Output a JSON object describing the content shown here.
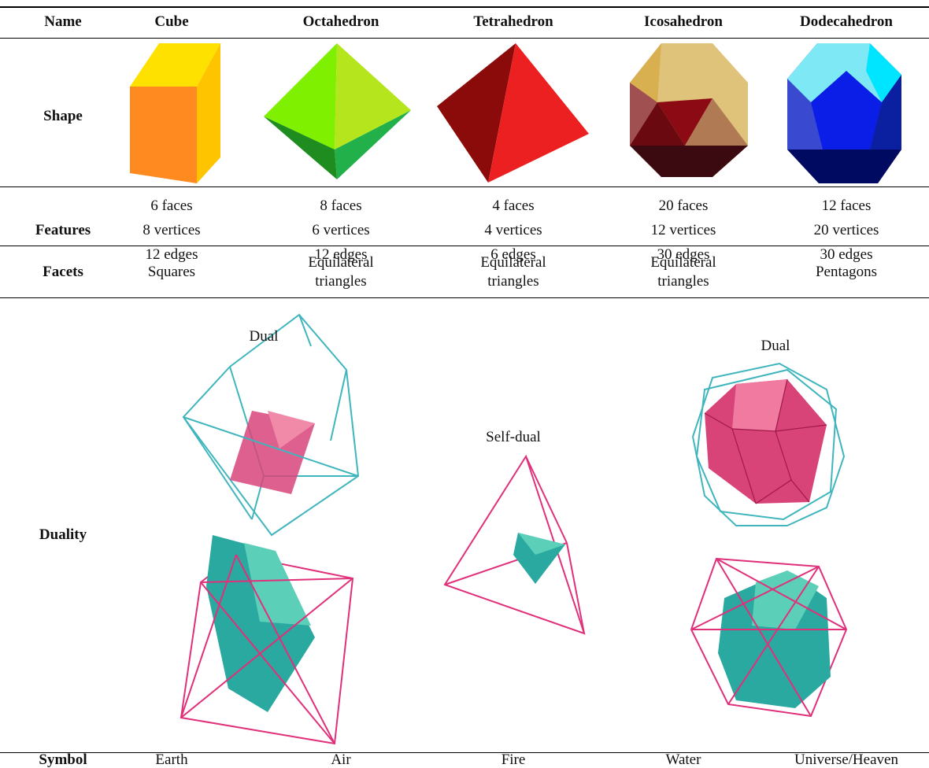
{
  "table": {
    "columns": [
      "Name",
      "Cube",
      "Octahedron",
      "Tetrahedron",
      "Icosahedron",
      "Dodecahedron"
    ],
    "rows": [
      {
        "label": "Shape"
      },
      {
        "label": "Features",
        "cells": [
          [
            "6 faces",
            "8 vertices",
            "12 edges"
          ],
          [
            "8 faces",
            "6 vertices",
            "12 edges"
          ],
          [
            "4 faces",
            "4 vertices",
            "6 edges"
          ],
          [
            "20 faces",
            "12 vertices",
            "30 edges"
          ],
          [
            "12 faces",
            "20 vertices",
            "30 edges"
          ]
        ]
      },
      {
        "label": "Facets",
        "cells": [
          "Squares",
          "Equilateral triangles",
          "Equilateral triangles",
          "Equilateral triangles",
          "Pentagons"
        ]
      },
      {
        "label": "Duality",
        "annotations": [
          "Dual",
          "Self-dual",
          "Dual"
        ]
      },
      {
        "label": "Symbol",
        "cells": [
          "Earth",
          "Air",
          "Fire",
          "Water",
          "Universe/Heaven"
        ]
      }
    ]
  }
}
